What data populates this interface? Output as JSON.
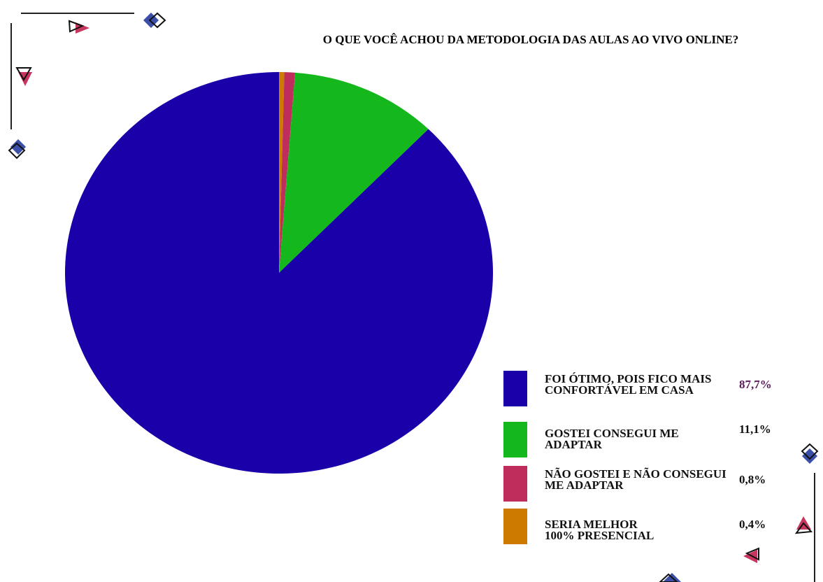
{
  "chart_data": {
    "type": "pie",
    "title": "O QUE VOCÊ ACHOU DA METODOLOGIA DAS AULAS AO VIVO ONLINE?",
    "series": [
      {
        "name": "SERIA MELHOR 100% PRESENCIAL",
        "color": "#cc7a00",
        "values": [
          0.4
        ],
        "value_labels": [
          "0,4%"
        ]
      },
      {
        "name": "NÃO GOSTEI E NÃO CONSEGUI ME ADAPTAR",
        "color": "#bf2d5c",
        "values": [
          0.8
        ],
        "value_labels": [
          "0,8%"
        ]
      },
      {
        "name": "GOSTEI CONSEGUI ME ADAPTAR",
        "color": "#14b81c",
        "values": [
          11.1
        ],
        "value_labels": [
          "11,1%"
        ]
      },
      {
        "name": "FOI ÓTIMO, POIS FICO MAIS CONFORTÁVEL EM CASA",
        "color": "#1a00a8",
        "values": [
          87.7
        ],
        "value_labels": [
          "87,7%"
        ]
      }
    ]
  }
}
